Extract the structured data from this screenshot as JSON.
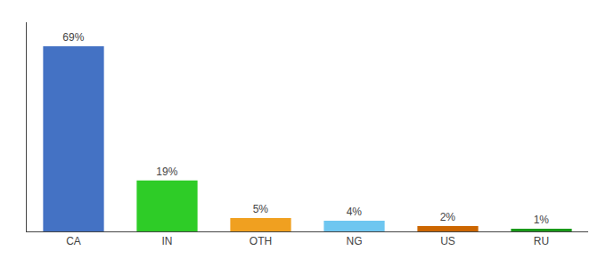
{
  "chart_data": {
    "type": "bar",
    "categories": [
      "CA",
      "IN",
      "OTH",
      "NG",
      "US",
      "RU"
    ],
    "values": [
      69,
      19,
      5,
      4,
      2,
      1
    ],
    "value_labels": [
      "69%",
      "19%",
      "5%",
      "4%",
      "2%",
      "1%"
    ],
    "data_labels": true,
    "colors": [
      "#4472c4",
      "#2ecc27",
      "#f0a020",
      "#6ec6f0",
      "#cc6600",
      "#1a9a1a"
    ],
    "ylim": [
      0,
      78
    ],
    "grid": false,
    "tick_labels": "x"
  }
}
